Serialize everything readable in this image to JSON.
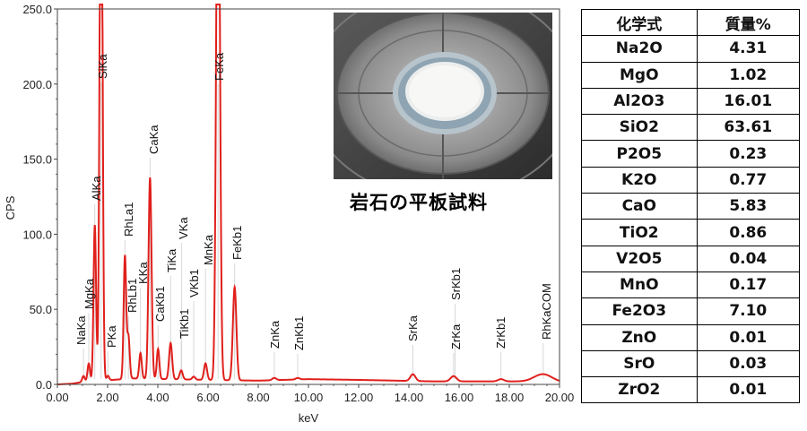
{
  "chart_data": {
    "type": "line",
    "xlabel": "keV",
    "ylabel": "CPS",
    "xlim": [
      0,
      20
    ],
    "ylim": [
      0,
      250
    ],
    "x_ticks": [
      "0.00",
      "2.00",
      "4.00",
      "6.00",
      "8.00",
      "10.00",
      "12.00",
      "14.00",
      "16.00",
      "18.00",
      "20.00"
    ],
    "y_ticks": [
      "0.0",
      "50.0",
      "100.0",
      "150.0",
      "200.0",
      "250.0"
    ],
    "line_color": "#e0201c",
    "peaks": [
      {
        "x": 1.04,
        "y": 4,
        "w": 0.05
      },
      {
        "x": 1.25,
        "y": 12,
        "w": 0.05
      },
      {
        "x": 1.49,
        "y": 104,
        "w": 0.05
      },
      {
        "x": 1.74,
        "y": 420,
        "w": 0.055
      },
      {
        "x": 2.01,
        "y": 3,
        "w": 0.05
      },
      {
        "x": 2.69,
        "y": 82,
        "w": 0.05
      },
      {
        "x": 2.83,
        "y": 28,
        "w": 0.05
      },
      {
        "x": 3.31,
        "y": 17,
        "w": 0.05
      },
      {
        "x": 3.69,
        "y": 134,
        "w": 0.06
      },
      {
        "x": 4.01,
        "y": 20,
        "w": 0.05
      },
      {
        "x": 4.51,
        "y": 24,
        "w": 0.06
      },
      {
        "x": 4.93,
        "y": 6,
        "w": 0.06
      },
      {
        "x": 5.43,
        "y": 2,
        "w": 0.06
      },
      {
        "x": 5.9,
        "y": 11,
        "w": 0.06
      },
      {
        "x": 6.4,
        "y": 420,
        "w": 0.07
      },
      {
        "x": 7.06,
        "y": 62,
        "w": 0.07
      },
      {
        "x": 8.64,
        "y": 1.5,
        "w": 0.08
      },
      {
        "x": 9.57,
        "y": 1,
        "w": 0.08
      },
      {
        "x": 14.16,
        "y": 4.5,
        "w": 0.1
      },
      {
        "x": 15.78,
        "y": 3.5,
        "w": 0.12
      },
      {
        "x": 17.67,
        "y": 1.5,
        "w": 0.12
      },
      {
        "x": 19.35,
        "y": 5,
        "w": 0.35
      }
    ],
    "background": [
      [
        0,
        0
      ],
      [
        0.6,
        0.5
      ],
      [
        0.95,
        1.5
      ],
      [
        2.2,
        3
      ],
      [
        3.0,
        4
      ],
      [
        4.5,
        3.5
      ],
      [
        6.0,
        3
      ],
      [
        8.0,
        2.5
      ],
      [
        10,
        3.5
      ],
      [
        12,
        3
      ],
      [
        13.5,
        2.5
      ],
      [
        15,
        2
      ],
      [
        17,
        2
      ],
      [
        19,
        2
      ],
      [
        20,
        1.5
      ]
    ],
    "peak_labels": [
      {
        "text": "NaKa",
        "x": 1.04
      },
      {
        "text": "MgKa",
        "x": 1.25
      },
      {
        "text": "AlKa",
        "x": 1.49
      },
      {
        "text": "SiKa",
        "x": 1.74
      },
      {
        "text": "PKa",
        "x": 2.01
      },
      {
        "text": "RhLa1",
        "x": 2.69
      },
      {
        "text": "RhLb1",
        "x": 2.83
      },
      {
        "text": "KKa",
        "x": 3.31
      },
      {
        "text": "CaKa",
        "x": 3.69
      },
      {
        "text": "CaKb1",
        "x": 4.01
      },
      {
        "text": "TiKa",
        "x": 4.51
      },
      {
        "text": "TiKb1",
        "x": 4.93
      },
      {
        "text": "VKa",
        "x": 4.95
      },
      {
        "text": "VKb1",
        "x": 5.43
      },
      {
        "text": "MnKa",
        "x": 5.9
      },
      {
        "text": "FeKa",
        "x": 6.4
      },
      {
        "text": "FeKb1",
        "x": 7.06
      },
      {
        "text": "ZnKa",
        "x": 8.64
      },
      {
        "text": "ZnKb1",
        "x": 9.57
      },
      {
        "text": "SrKa",
        "x": 14.16
      },
      {
        "text": "ZrKa",
        "x": 15.78
      },
      {
        "text": "SrKb1",
        "x": 15.84
      },
      {
        "text": "ZrKb1",
        "x": 17.67
      },
      {
        "text": "RhKaCOM",
        "x": 19.35
      }
    ]
  },
  "photo": {
    "description_color": "#3a3a3a"
  },
  "caption": "岩石の平板試料",
  "table": {
    "headers": [
      "化学式",
      "質量%"
    ],
    "rows": [
      [
        "Na2O",
        "4.31"
      ],
      [
        "MgO",
        "1.02"
      ],
      [
        "Al2O3",
        "16.01"
      ],
      [
        "SiO2",
        "63.61"
      ],
      [
        "P2O5",
        "0.23"
      ],
      [
        "K2O",
        "0.77"
      ],
      [
        "CaO",
        "5.83"
      ],
      [
        "TiO2",
        "0.86"
      ],
      [
        "V2O5",
        "0.04"
      ],
      [
        "MnO",
        "0.17"
      ],
      [
        "Fe2O3",
        "7.10"
      ],
      [
        "ZnO",
        "0.01"
      ],
      [
        "SrO",
        "0.03"
      ],
      [
        "ZrO2",
        "0.01"
      ]
    ]
  }
}
